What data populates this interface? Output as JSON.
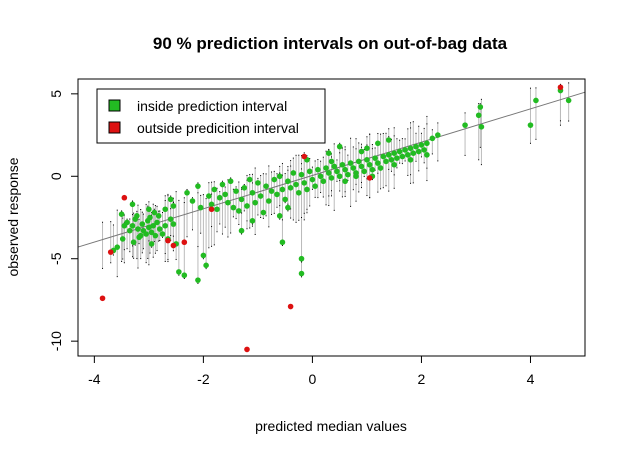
{
  "chart_data": {
    "type": "scatter",
    "title": "90 % prediction intervals on out-of-bag data",
    "xlabel": "predicted median values",
    "ylabel": "observed response",
    "xlim": [
      -4.3,
      5.0
    ],
    "ylim": [
      -10.9,
      5.9
    ],
    "xticks": [
      -4,
      -2,
      0,
      2,
      4
    ],
    "yticks": [
      5,
      0,
      -5,
      -10
    ],
    "grid": false,
    "legend_position": "top-left",
    "colors": {
      "inside": "#22bb22",
      "outside": "#dd1111",
      "interval": "#bbbbbb",
      "reference_line": "#777777",
      "quantile_dots": "#000000"
    },
    "legend": [
      {
        "label": "inside prediction interval",
        "color": "#22bb22"
      },
      {
        "label": "outside predicition interval",
        "color": "#dd1111"
      }
    ],
    "reference_line": {
      "slope": 1.01,
      "intercept": 0.05
    },
    "series": [
      {
        "name": "inside prediction interval",
        "points": [
          [
            -3.5,
            -2.3
          ],
          [
            -3.45,
            -3.0
          ],
          [
            -3.4,
            -2.8
          ],
          [
            -3.35,
            -3.3
          ],
          [
            -3.3,
            -3.0
          ],
          [
            -3.28,
            -4.0
          ],
          [
            -3.25,
            -2.6
          ],
          [
            -3.2,
            -3.2
          ],
          [
            -3.15,
            -3.6
          ],
          [
            -3.12,
            -2.9
          ],
          [
            -3.1,
            -3.3
          ],
          [
            -3.05,
            -3.5
          ],
          [
            -3.02,
            -2.7
          ],
          [
            -3.0,
            -3.1
          ],
          [
            -2.98,
            -2.5
          ],
          [
            -2.95,
            -3.4
          ],
          [
            -2.92,
            -3.0
          ],
          [
            -2.9,
            -2.2
          ],
          [
            -2.88,
            -3.6
          ],
          [
            -2.85,
            -2.8
          ],
          [
            -2.8,
            -3.2
          ],
          [
            -2.75,
            -3.5
          ],
          [
            -2.7,
            -3.0
          ],
          [
            -2.65,
            -3.8
          ],
          [
            -2.6,
            -2.6
          ],
          [
            -2.55,
            -2.9
          ],
          [
            -3.58,
            -4.3
          ],
          [
            -3.65,
            -4.5
          ],
          [
            -3.48,
            -3.8
          ],
          [
            -3.22,
            -2.4
          ],
          [
            -2.7,
            -2.0
          ],
          [
            -2.6,
            -1.4
          ],
          [
            -2.55,
            -1.8
          ],
          [
            -2.5,
            -4.1
          ],
          [
            -2.45,
            -5.8
          ],
          [
            -2.35,
            -6.0
          ],
          [
            -2.1,
            -6.3
          ],
          [
            -2.3,
            -1.0
          ],
          [
            -2.2,
            -1.5
          ],
          [
            -2.1,
            -0.6
          ],
          [
            -2.05,
            -1.9
          ],
          [
            -2.0,
            -4.8
          ],
          [
            -1.95,
            -5.4
          ],
          [
            -1.9,
            -1.2
          ],
          [
            -1.85,
            -1.7
          ],
          [
            -1.8,
            -0.8
          ],
          [
            -1.75,
            -2.0
          ],
          [
            -1.7,
            -1.3
          ],
          [
            -1.65,
            -0.5
          ],
          [
            -1.6,
            -1.1
          ],
          [
            -1.55,
            -1.6
          ],
          [
            -1.5,
            -0.3
          ],
          [
            -1.45,
            -1.9
          ],
          [
            -1.4,
            -0.9
          ],
          [
            -1.35,
            -2.1
          ],
          [
            -1.3,
            -1.4
          ],
          [
            -1.25,
            -0.7
          ],
          [
            -1.2,
            -1.8
          ],
          [
            -1.15,
            -0.2
          ],
          [
            -1.1,
            -1.0
          ],
          [
            -1.05,
            -1.6
          ],
          [
            -1.0,
            -0.4
          ],
          [
            -0.95,
            -1.2
          ],
          [
            -0.9,
            -2.2
          ],
          [
            -0.85,
            -0.6
          ],
          [
            -0.8,
            -1.5
          ],
          [
            -0.75,
            -0.9
          ],
          [
            -0.7,
            -0.2
          ],
          [
            -0.65,
            -1.1
          ],
          [
            -0.6,
            0.0
          ],
          [
            -0.55,
            -0.8
          ],
          [
            -0.5,
            -1.4
          ],
          [
            -0.45,
            -0.3
          ],
          [
            -0.4,
            -0.7
          ],
          [
            -0.35,
            0.2
          ],
          [
            -0.3,
            -0.5
          ],
          [
            -0.25,
            -1.0
          ],
          [
            -0.2,
            0.1
          ],
          [
            -0.15,
            -0.4
          ],
          [
            -0.1,
            -0.8
          ],
          [
            -0.05,
            0.3
          ],
          [
            0.0,
            -0.2
          ],
          [
            0.05,
            -0.6
          ],
          [
            0.1,
            0.4
          ],
          [
            0.15,
            0.0
          ],
          [
            0.2,
            -0.3
          ],
          [
            0.25,
            0.5
          ],
          [
            0.3,
            0.2
          ],
          [
            0.35,
            -0.1
          ],
          [
            0.4,
            0.6
          ],
          [
            0.45,
            0.3
          ],
          [
            0.5,
            0.0
          ],
          [
            0.55,
            0.7
          ],
          [
            0.6,
            0.4
          ],
          [
            0.65,
            0.1
          ],
          [
            0.7,
            0.8
          ],
          [
            0.75,
            0.5
          ],
          [
            0.8,
            0.2
          ],
          [
            0.85,
            0.9
          ],
          [
            0.9,
            0.6
          ],
          [
            0.95,
            0.3
          ],
          [
            1.0,
            1.0
          ],
          [
            1.05,
            0.7
          ],
          [
            1.1,
            0.4
          ],
          [
            1.15,
            1.1
          ],
          [
            1.2,
            0.8
          ],
          [
            1.25,
            0.5
          ],
          [
            1.3,
            1.2
          ],
          [
            1.35,
            0.9
          ],
          [
            1.4,
            1.3
          ],
          [
            1.45,
            1.0
          ],
          [
            1.5,
            1.4
          ],
          [
            1.55,
            1.1
          ],
          [
            1.6,
            1.5
          ],
          [
            1.65,
            1.2
          ],
          [
            1.7,
            1.6
          ],
          [
            1.75,
            1.3
          ],
          [
            1.8,
            1.7
          ],
          [
            1.85,
            1.4
          ],
          [
            1.9,
            1.8
          ],
          [
            1.95,
            1.5
          ],
          [
            2.0,
            1.9
          ],
          [
            2.05,
            1.6
          ],
          [
            2.1,
            2.0
          ],
          [
            2.2,
            2.3
          ],
          [
            2.3,
            2.5
          ],
          [
            1.0,
            1.7
          ],
          [
            0.9,
            1.5
          ],
          [
            1.2,
            2.0
          ],
          [
            1.4,
            2.2
          ],
          [
            -1.1,
            -2.7
          ],
          [
            -1.3,
            -3.3
          ],
          [
            -0.6,
            -2.4
          ],
          [
            -0.55,
            -4.0
          ],
          [
            -0.2,
            -5.9
          ],
          [
            -0.2,
            -5.0
          ],
          [
            -0.45,
            -1.9
          ],
          [
            0.3,
            1.4
          ],
          [
            0.5,
            1.8
          ],
          [
            -0.1,
            1.0
          ],
          [
            2.8,
            3.1
          ],
          [
            3.05,
            3.7
          ],
          [
            3.08,
            4.2
          ],
          [
            3.1,
            3.0
          ],
          [
            4.0,
            3.1
          ],
          [
            4.1,
            4.6
          ],
          [
            4.55,
            5.2
          ],
          [
            4.7,
            4.6
          ],
          [
            -3.3,
            -1.7
          ],
          [
            -3.0,
            -2.0
          ],
          [
            -2.95,
            -4.1
          ],
          [
            -3.18,
            -3.7
          ],
          [
            -2.82,
            -2.4
          ],
          [
            0.8,
            0.0
          ],
          [
            1.1,
            0.0
          ],
          [
            0.6,
            -0.3
          ],
          [
            0.35,
            0.9
          ],
          [
            1.5,
            0.7
          ],
          [
            1.8,
            1.0
          ],
          [
            2.1,
            1.3
          ]
        ]
      },
      {
        "name": "outside predicition interval",
        "points": [
          [
            -3.85,
            -7.4
          ],
          [
            -3.7,
            -4.6
          ],
          [
            -3.45,
            -1.3
          ],
          [
            -2.65,
            -3.9
          ],
          [
            -2.55,
            -4.2
          ],
          [
            -2.35,
            -4.0
          ],
          [
            -1.85,
            -2.0
          ],
          [
            -1.2,
            -10.5
          ],
          [
            -0.4,
            -7.9
          ],
          [
            -0.15,
            1.2
          ],
          [
            1.05,
            -0.1
          ],
          [
            4.55,
            5.4
          ]
        ]
      }
    ]
  }
}
